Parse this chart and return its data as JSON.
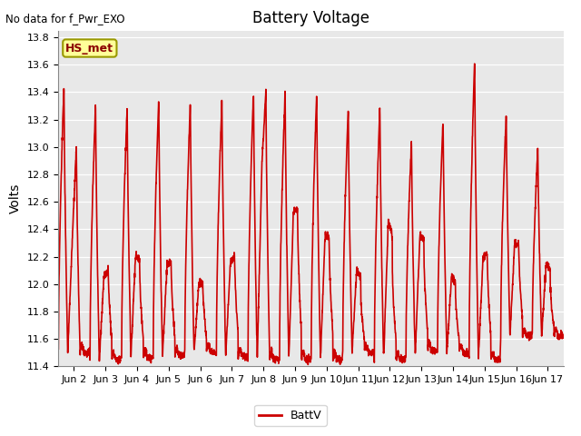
{
  "title": "Battery Voltage",
  "top_left_text": "No data for f_Pwr_EXO",
  "ylabel": "Volts",
  "ylim": [
    11.4,
    13.85
  ],
  "bg_color": "#e8e8e8",
  "line_color": "#cc0000",
  "line_width": 1.2,
  "legend_label": "BattV",
  "hs_met_label": "HS_met",
  "hs_met_bg": "#ffff99",
  "hs_met_text_color": "#8b0000",
  "xtick_labels": [
    "Jun 2",
    "Jun 3",
    "Jun 4",
    "Jun 5",
    "Jun 6",
    "Jun 7",
    "Jun 8",
    "Jun 9",
    "Jun 10",
    "Jun 11",
    "Jun 12",
    "Jun 13",
    "Jun 14",
    "Jun 15",
    "Jun 16",
    "Jun 17"
  ],
  "xtick_positions": [
    1,
    2,
    3,
    4,
    5,
    6,
    7,
    8,
    9,
    10,
    11,
    12,
    13,
    14,
    15,
    16
  ],
  "xlim": [
    0.5,
    16.5
  ],
  "ytick_vals": [
    11.4,
    11.6,
    11.8,
    12.0,
    12.2,
    12.4,
    12.6,
    12.8,
    13.0,
    13.2,
    13.4,
    13.6,
    13.8
  ]
}
